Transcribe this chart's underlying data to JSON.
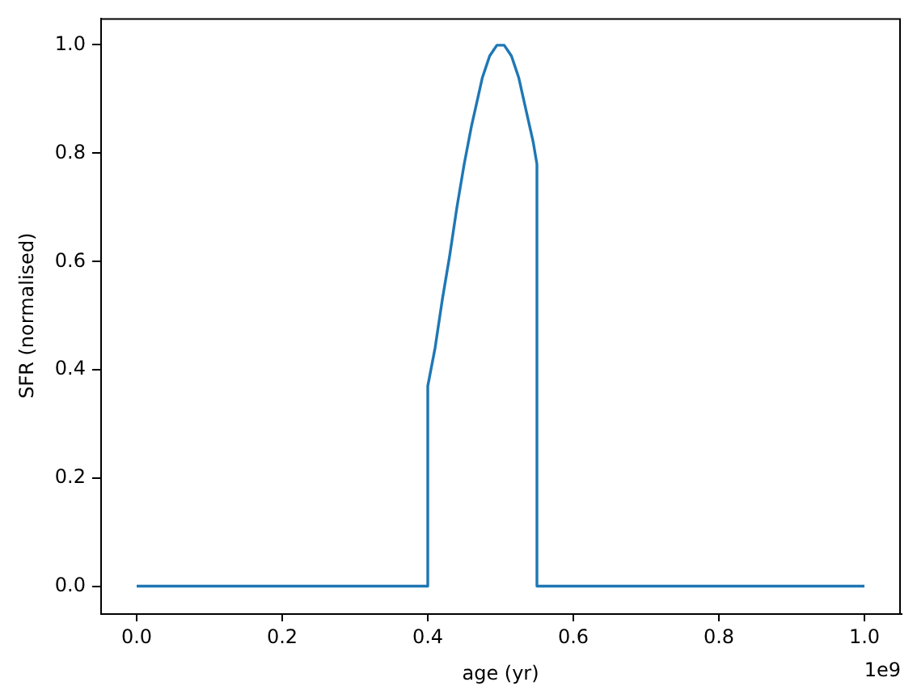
{
  "chart_data": {
    "type": "line",
    "xlabel": "age (yr)",
    "ylabel": "SFR (normalised)",
    "annotations": [
      "1e9"
    ],
    "x": [
      0,
      0.4,
      0.4,
      0.41,
      0.42,
      0.43,
      0.44,
      0.45,
      0.46,
      0.47,
      0.475,
      0.48,
      0.485,
      0.49,
      0.495,
      0.5,
      0.505,
      0.51,
      0.515,
      0.52,
      0.525,
      0.53,
      0.535,
      0.54,
      0.545,
      0.55,
      0.55,
      1.0
    ],
    "values": [
      0,
      0,
      0.37,
      0.44,
      0.53,
      0.61,
      0.7,
      0.78,
      0.85,
      0.91,
      0.94,
      0.96,
      0.98,
      0.99,
      1.0,
      1.0,
      1.0,
      0.99,
      0.98,
      0.96,
      0.94,
      0.91,
      0.88,
      0.85,
      0.82,
      0.78,
      0,
      0
    ],
    "color": "#1f77b4",
    "xlim": [
      -0.05,
      1.05
    ],
    "xticks": [
      {
        "value": 0,
        "label": "0.0"
      },
      0.2,
      0.4,
      0.6,
      0.8,
      {
        "value": 1,
        "label": "1.0"
      }
    ],
    "ylim": [
      -0.05,
      1.05
    ],
    "yticks": [
      {
        "value": 0,
        "label": "0.0"
      },
      0.2,
      0.4,
      0.6,
      0.8,
      {
        "value": 1,
        "label": "1.0"
      }
    ]
  }
}
